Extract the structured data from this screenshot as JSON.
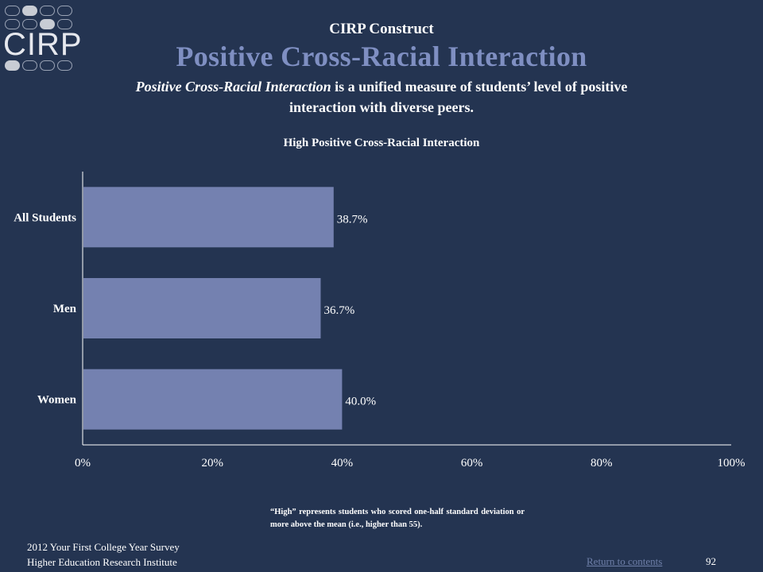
{
  "logo": {
    "text": "CIRP"
  },
  "header": {
    "subtitle": "CIRP Construct",
    "title": "Positive Cross-Racial Interaction"
  },
  "description": {
    "emphasis": "Positive Cross-Racial Interaction",
    "rest": " is a unified measure of students’ level of positive interaction with diverse peers."
  },
  "chart_data": {
    "type": "bar",
    "orientation": "horizontal",
    "title": "High Positive Cross-Racial Interaction",
    "categories": [
      "All Students",
      "Men",
      "Women"
    ],
    "values": [
      38.7,
      36.7,
      40.0
    ],
    "value_labels": [
      "38.7%",
      "36.7%",
      "40.0%"
    ],
    "xlim": [
      0,
      100
    ],
    "x_ticks": [
      0,
      20,
      40,
      60,
      80,
      100
    ],
    "x_tick_labels": [
      "0%",
      "20%",
      "40%",
      "60%",
      "80%",
      "100%"
    ],
    "bar_color": "#7481b0",
    "grid": false
  },
  "footnote": "“High” represents students who scored one-half standard deviation or more above the mean (i.e., higher than 55).",
  "footer": {
    "line1": "2012 Your First College Year Survey",
    "line2": "Higher Education Research Institute",
    "link": "Return to contents",
    "page": "92"
  },
  "colors": {
    "background": "#243451",
    "title_accent": "#7f8fc2",
    "link": "#6e7fa8"
  }
}
